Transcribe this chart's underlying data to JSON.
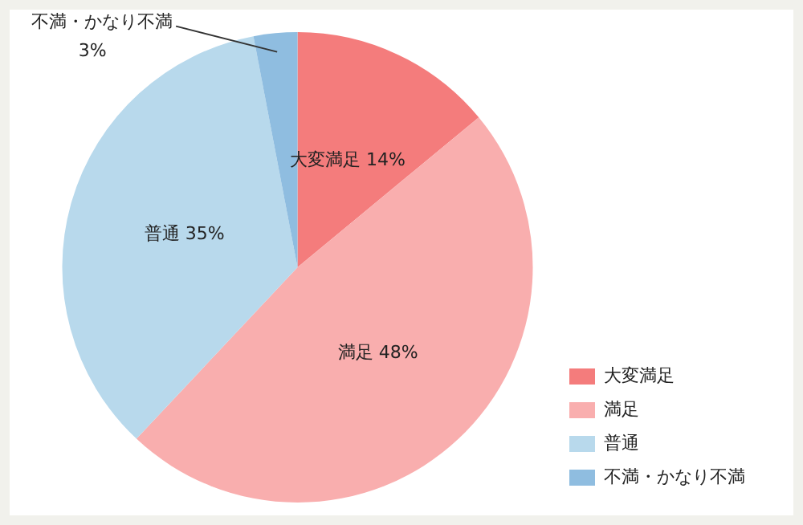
{
  "chart_data": {
    "type": "pie",
    "categories": [
      "大変満足",
      "満足",
      "普通",
      "不満・かなり不満"
    ],
    "values": [
      14,
      48,
      35,
      3
    ],
    "colors": [
      "#f47c7c",
      "#f9aeae",
      "#b8d9ec",
      "#8fbde0"
    ],
    "value_labels": [
      "大変満足 14%",
      "満足 48%",
      "普通 35%",
      "不満・かなり不満\n3%"
    ],
    "legend": "bottom right"
  }
}
